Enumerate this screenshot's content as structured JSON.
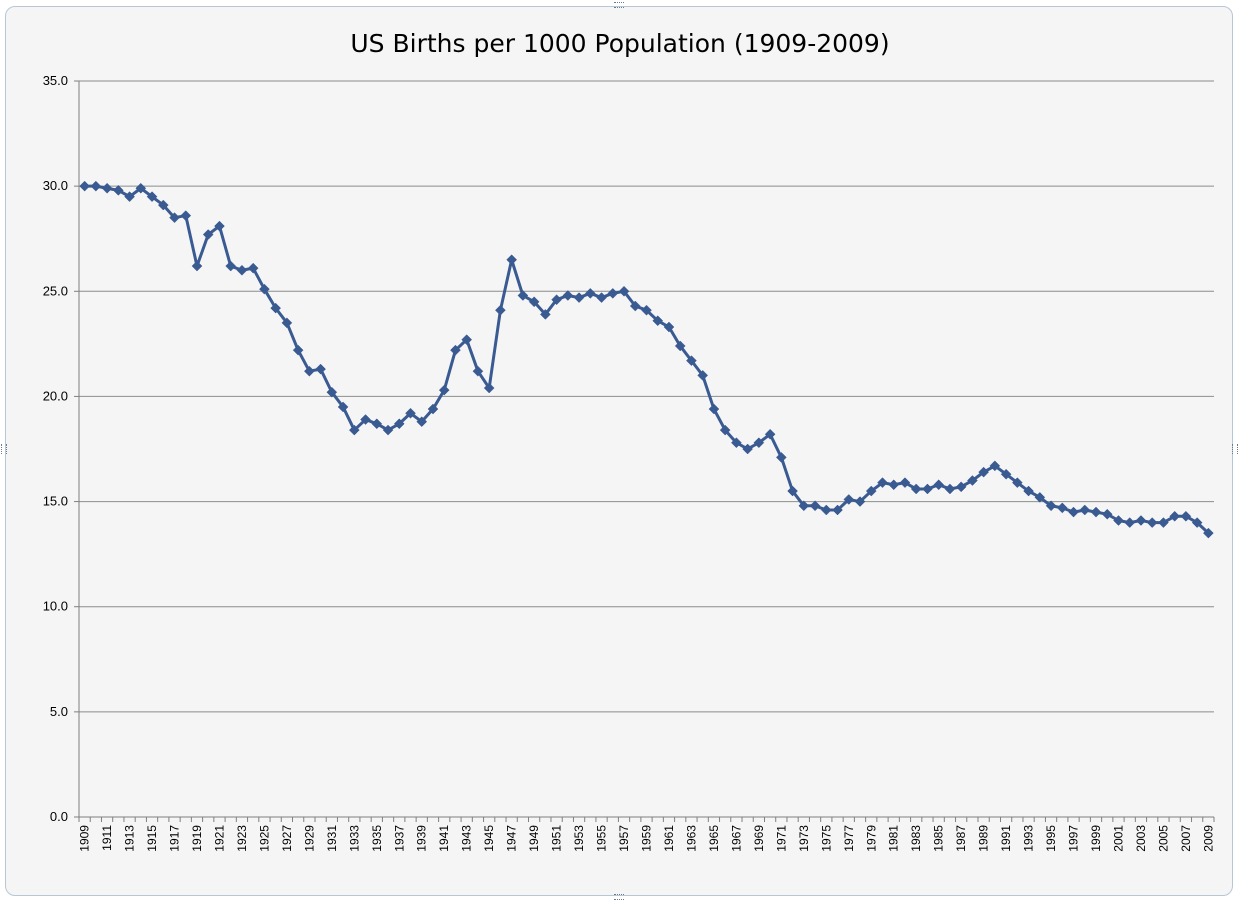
{
  "chart_data": {
    "type": "line",
    "title": "US Births per 1000 Population (1909-2009)",
    "xlabel": "",
    "ylabel": "",
    "ylim": [
      0,
      35
    ],
    "y_ticks": [
      "0.0",
      "5.0",
      "10.0",
      "15.0",
      "20.0",
      "25.0",
      "30.0",
      "35.0"
    ],
    "y_tick_values": [
      0,
      5,
      10,
      15,
      20,
      25,
      30,
      35
    ],
    "grid": true,
    "legend": "none",
    "colors": {
      "line": "#3a5a92",
      "grid": "#8c8c8c",
      "axis": "#7f7f7f",
      "background": "#f5f5f5"
    },
    "x": [
      1909,
      1910,
      1911,
      1912,
      1913,
      1914,
      1915,
      1916,
      1917,
      1918,
      1919,
      1920,
      1921,
      1922,
      1923,
      1924,
      1925,
      1926,
      1927,
      1928,
      1929,
      1930,
      1931,
      1932,
      1933,
      1934,
      1935,
      1936,
      1937,
      1938,
      1939,
      1940,
      1941,
      1942,
      1943,
      1944,
      1945,
      1946,
      1947,
      1948,
      1949,
      1950,
      1951,
      1952,
      1953,
      1954,
      1955,
      1956,
      1957,
      1958,
      1959,
      1960,
      1961,
      1962,
      1963,
      1964,
      1965,
      1966,
      1967,
      1968,
      1969,
      1970,
      1971,
      1972,
      1973,
      1974,
      1975,
      1976,
      1977,
      1978,
      1979,
      1980,
      1981,
      1982,
      1983,
      1984,
      1985,
      1986,
      1987,
      1988,
      1989,
      1990,
      1991,
      1992,
      1993,
      1994,
      1995,
      1996,
      1997,
      1998,
      1999,
      2000,
      2001,
      2002,
      2003,
      2004,
      2005,
      2006,
      2007,
      2008,
      2009
    ],
    "x_tick_labels": [
      "1909",
      "1911",
      "1913",
      "1915",
      "1917",
      "1919",
      "1921",
      "1923",
      "1925",
      "1927",
      "1929",
      "1931",
      "1933",
      "1935",
      "1937",
      "1939",
      "1941",
      "1943",
      "1945",
      "1947",
      "1949",
      "1951",
      "1953",
      "1955",
      "1957",
      "1959",
      "1961",
      "1963",
      "1965",
      "1967",
      "1969",
      "1971",
      "1973",
      "1975",
      "1977",
      "1979",
      "1981",
      "1983",
      "1985",
      "1987",
      "1989",
      "1991",
      "1993",
      "1995",
      "1997",
      "1999",
      "2001",
      "2003",
      "2005",
      "2007",
      "2009"
    ],
    "series": [
      {
        "name": "Births per 1000",
        "values": [
          30.0,
          30.0,
          29.9,
          29.8,
          29.5,
          29.9,
          29.5,
          29.1,
          28.5,
          28.6,
          26.2,
          27.7,
          28.1,
          26.2,
          26.0,
          26.1,
          25.1,
          24.2,
          23.5,
          22.2,
          21.2,
          21.3,
          20.2,
          19.5,
          18.4,
          18.9,
          18.7,
          18.4,
          18.7,
          19.2,
          18.8,
          19.4,
          20.3,
          22.2,
          22.7,
          21.2,
          20.4,
          24.1,
          26.5,
          24.8,
          24.5,
          23.9,
          24.6,
          24.8,
          24.7,
          24.9,
          24.7,
          24.9,
          25.0,
          24.3,
          24.1,
          23.6,
          23.3,
          22.4,
          21.7,
          21.0,
          19.4,
          18.4,
          17.8,
          17.5,
          17.8,
          18.2,
          17.1,
          15.5,
          14.8,
          14.8,
          14.6,
          14.6,
          15.1,
          15.0,
          15.5,
          15.9,
          15.8,
          15.9,
          15.6,
          15.6,
          15.8,
          15.6,
          15.7,
          16.0,
          16.4,
          16.7,
          16.3,
          15.9,
          15.5,
          15.2,
          14.8,
          14.7,
          14.5,
          14.6,
          14.5,
          14.4,
          14.1,
          14.0,
          14.1,
          14.0,
          14.0,
          14.3,
          14.3,
          14.0,
          13.5
        ]
      }
    ]
  }
}
